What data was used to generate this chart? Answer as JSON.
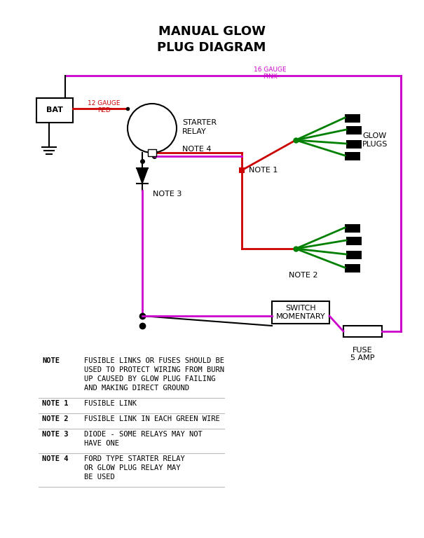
{
  "bg_color": "#ffffff",
  "colors": {
    "red": "#cc0000",
    "green": "#008000",
    "pink": "#cc00cc",
    "black": "#000000"
  },
  "title1": "MANUAL GLOW",
  "title2": "PLUG DIAGRAM",
  "label_16gauge": "16 GAUGE",
  "label_pink": "PINK",
  "label_12gauge": "12 GAUGE",
  "label_red": "RED",
  "label_bat": "BAT",
  "label_starter": "STARTER",
  "label_relay": "RELAY",
  "label_note4": "NOTE 4",
  "label_note1": "NOTE 1",
  "label_note2": "NOTE 2",
  "label_note3": "NOTE 3",
  "label_glow": "GLOW",
  "label_plugs": "PLUGS",
  "label_switch1": "SWITCH",
  "label_switch2": "MOMENTARY",
  "label_fuse1": "FUSE",
  "label_fuse2": "5 AMP",
  "notes_text": [
    [
      "NOTE",
      "FUSIBLE LINKS OR FUSES SHOULD BE",
      "USED TO PROTECT WIRING FROM BURN",
      "UP CAUSED BY GLOW PLUG FAILING",
      "AND MAKING DIRECT GROUND"
    ],
    [
      "NOTE 1",
      "FUSIBLE LINK"
    ],
    [
      "NOTE 2",
      "FUSIBLE LINK IN EACH GREEN WIRE"
    ],
    [
      "NOTE 3",
      "DIODE - SOME RELAYS MAY NOT",
      "HAVE ONE"
    ],
    [
      "NOTE 4",
      "FORD TYPE STARTER RELAY",
      "OR GLOW PLUG RELAY MAY",
      "BE USED"
    ]
  ]
}
